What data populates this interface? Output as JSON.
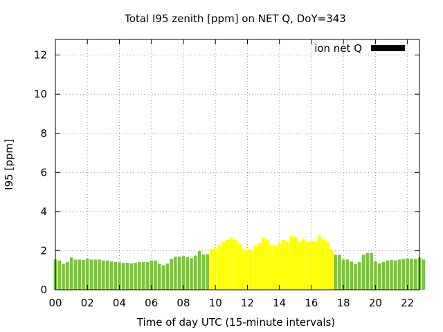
{
  "chart_data": {
    "type": "bar",
    "title": "Total I95 zenith [ppm] on NET Q, DoY=343",
    "xlabel": "Time of day UTC (15-minute intervals)",
    "ylabel": "I95 [ppm]",
    "xlim": [
      0,
      22.75
    ],
    "ylim": [
      0,
      12.8
    ],
    "xticks": [
      "00",
      "02",
      "04",
      "06",
      "08",
      "10",
      "12",
      "14",
      "16",
      "18",
      "20",
      "22"
    ],
    "yticks": [
      "0",
      "2",
      "4",
      "6",
      "8",
      "10",
      "12"
    ],
    "grid": true,
    "legend": {
      "position": "top-right",
      "entries": [
        {
          "label": "ion net Q",
          "color": "#000000"
        }
      ]
    },
    "colors": {
      "low": "#7dc242",
      "high": "#ffff00"
    },
    "x_hours_start": 0,
    "x_step_hours": 0.25,
    "series": [
      {
        "values": [
          1.55,
          1.5,
          1.32,
          1.42,
          1.65,
          1.55,
          1.55,
          1.52,
          1.6,
          1.55,
          1.55,
          1.55,
          1.5,
          1.5,
          1.45,
          1.42,
          1.4,
          1.38,
          1.38,
          1.35,
          1.38,
          1.42,
          1.42,
          1.42,
          1.5,
          1.5,
          1.32,
          1.25,
          1.35,
          1.58,
          1.7,
          1.7,
          1.72,
          1.68,
          1.62,
          1.75,
          1.98,
          1.8,
          1.82,
          2.08,
          2.12,
          2.3,
          2.45,
          2.55,
          2.65,
          2.55,
          2.4,
          2.1,
          2.05,
          2.0,
          2.25,
          2.4,
          2.65,
          2.55,
          2.3,
          2.25,
          2.4,
          2.55,
          2.45,
          2.75,
          2.7,
          2.45,
          2.6,
          2.45,
          2.5,
          2.5,
          2.8,
          2.6,
          2.45,
          2.05,
          1.8,
          1.8,
          1.55,
          1.55,
          1.45,
          1.32,
          1.42,
          1.8,
          1.88,
          1.88,
          1.45,
          1.35,
          1.42,
          1.5,
          1.52,
          1.5,
          1.55,
          1.58,
          1.6,
          1.6,
          1.58,
          1.65,
          1.55
        ],
        "high_range": [
          39,
          69
        ]
      }
    ]
  }
}
